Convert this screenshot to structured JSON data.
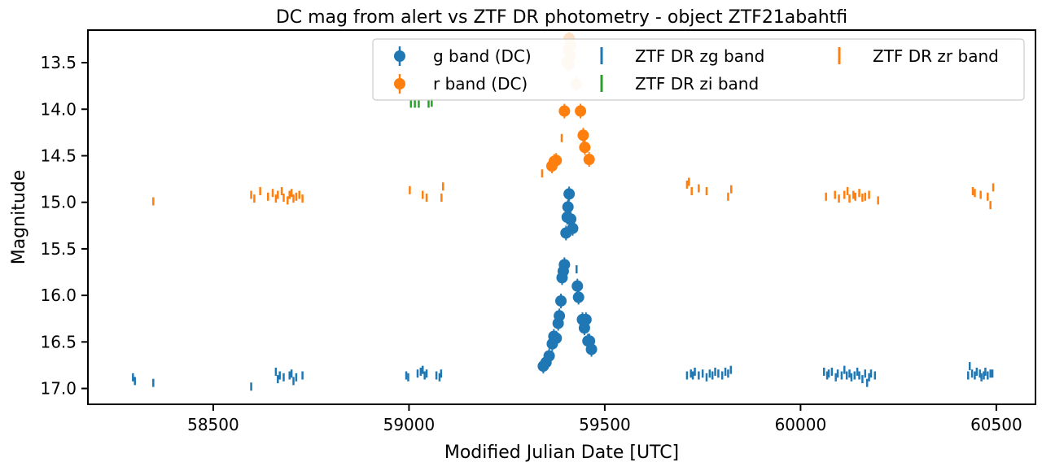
{
  "chart_data": {
    "type": "scatter",
    "title": "DC mag from alert vs ZTF DR photometry - object ZTF21abahtfi",
    "xlabel": "Modified Julian Date [UTC]",
    "ylabel": "Magnitude",
    "xlim": [
      58180,
      60600
    ],
    "ylim": [
      17.17,
      13.15
    ],
    "y_inverted": true,
    "xticks": [
      58500,
      59000,
      59500,
      60000,
      60500
    ],
    "xtick_labels": [
      "58500",
      "59000",
      "59500",
      "60000",
      "60500"
    ],
    "yticks": [
      13.5,
      14.0,
      14.5,
      15.0,
      15.5,
      16.0,
      16.5,
      17.0
    ],
    "ytick_labels": [
      "13.5",
      "14.0",
      "14.5",
      "15.0",
      "15.5",
      "16.0",
      "16.5",
      "17.0"
    ],
    "grid": false,
    "legend_position": "upper-right",
    "series": [
      {
        "name": "g band (DC)",
        "marker": "circle",
        "color": "#1f77b4",
        "points": [
          [
            59343,
            16.76
          ],
          [
            59350,
            16.72
          ],
          [
            59358,
            16.65
          ],
          [
            59366,
            16.52
          ],
          [
            59370,
            16.44
          ],
          [
            59376,
            16.46
          ],
          [
            59381,
            16.3
          ],
          [
            59384,
            16.22
          ],
          [
            59388,
            16.06
          ],
          [
            59391,
            15.81
          ],
          [
            59394,
            15.74
          ],
          [
            59397,
            15.67
          ],
          [
            59401,
            15.33
          ],
          [
            59404,
            15.16
          ],
          [
            59406,
            15.05
          ],
          [
            59409,
            14.91
          ],
          [
            59413,
            15.18
          ],
          [
            59418,
            15.28
          ],
          [
            59430,
            15.9
          ],
          [
            59433,
            16.02
          ],
          [
            59443,
            16.26
          ],
          [
            59448,
            16.35
          ],
          [
            59452,
            16.26
          ],
          [
            59457,
            16.49
          ],
          [
            59461,
            16.49
          ],
          [
            59466,
            16.58
          ]
        ]
      },
      {
        "name": "r band (DC)",
        "marker": "circle",
        "color": "#ff7f0e",
        "points": [
          [
            59365,
            14.61
          ],
          [
            59371,
            14.56
          ],
          [
            59376,
            14.55
          ],
          [
            59397,
            14.02
          ],
          [
            59438,
            14.02
          ],
          [
            59445,
            14.28
          ],
          [
            59449,
            14.41
          ],
          [
            59460,
            14.54
          ]
        ]
      },
      {
        "name": "",
        "marker": "circle",
        "color": "#fde0c5",
        "points": [
          [
            59409,
            13.24
          ],
          [
            59413,
            13.31
          ],
          [
            59407,
            13.36
          ],
          [
            59411,
            13.43
          ],
          [
            59403,
            13.49
          ],
          [
            59408,
            13.52
          ],
          [
            59427,
            13.73
          ]
        ]
      },
      {
        "name": "ZTF DR zg band",
        "marker": "vline",
        "color": "#1f77b4",
        "points": [
          [
            58295,
            16.88
          ],
          [
            58300,
            16.92
          ],
          [
            58347,
            16.94
          ],
          [
            58597,
            16.98
          ],
          [
            58660,
            16.82
          ],
          [
            58665,
            16.9
          ],
          [
            58670,
            16.86
          ],
          [
            58680,
            16.88
          ],
          [
            58695,
            16.86
          ],
          [
            58700,
            16.84
          ],
          [
            58705,
            16.92
          ],
          [
            58712,
            16.88
          ],
          [
            58728,
            16.86
          ],
          [
            58993,
            16.86
          ],
          [
            58998,
            16.88
          ],
          [
            59022,
            16.84
          ],
          [
            59030,
            16.82
          ],
          [
            59035,
            16.8
          ],
          [
            59040,
            16.86
          ],
          [
            59045,
            16.84
          ],
          [
            59070,
            16.86
          ],
          [
            59078,
            16.88
          ],
          [
            59082,
            16.84
          ],
          [
            59428,
            15.72
          ],
          [
            59710,
            16.86
          ],
          [
            59720,
            16.84
          ],
          [
            59725,
            16.86
          ],
          [
            59730,
            16.82
          ],
          [
            59740,
            16.86
          ],
          [
            59750,
            16.84
          ],
          [
            59760,
            16.88
          ],
          [
            59768,
            16.84
          ],
          [
            59775,
            16.86
          ],
          [
            59782,
            16.82
          ],
          [
            59790,
            16.84
          ],
          [
            59800,
            16.86
          ],
          [
            59808,
            16.82
          ],
          [
            59815,
            16.84
          ],
          [
            59822,
            16.8
          ],
          [
            60060,
            16.82
          ],
          [
            60068,
            16.86
          ],
          [
            60072,
            16.84
          ],
          [
            60080,
            16.82
          ],
          [
            60090,
            16.88
          ],
          [
            60095,
            16.84
          ],
          [
            60105,
            16.86
          ],
          [
            60112,
            16.8
          ],
          [
            60118,
            16.86
          ],
          [
            60125,
            16.84
          ],
          [
            60130,
            16.88
          ],
          [
            60138,
            16.86
          ],
          [
            60145,
            16.82
          ],
          [
            60150,
            16.86
          ],
          [
            60158,
            16.9
          ],
          [
            60165,
            16.84
          ],
          [
            60170,
            16.94
          ],
          [
            60175,
            16.88
          ],
          [
            60180,
            16.84
          ],
          [
            60190,
            16.86
          ],
          [
            60428,
            16.86
          ],
          [
            60432,
            16.76
          ],
          [
            60438,
            16.84
          ],
          [
            60445,
            16.86
          ],
          [
            60450,
            16.82
          ],
          [
            60458,
            16.84
          ],
          [
            60462,
            16.88
          ],
          [
            60468,
            16.86
          ],
          [
            60472,
            16.82
          ],
          [
            60478,
            16.86
          ],
          [
            60485,
            16.84
          ],
          [
            60490,
            16.84
          ]
        ]
      },
      {
        "name": "ZTF DR zi band",
        "marker": "vline",
        "color": "#2ca02c",
        "points": [
          [
            59005,
            13.94
          ],
          [
            59015,
            13.94
          ],
          [
            59025,
            13.94
          ],
          [
            59050,
            13.94
          ],
          [
            59058,
            13.93
          ]
        ]
      },
      {
        "name": "ZTF DR zr band",
        "marker": "vline",
        "color": "#ff7f0e",
        "points": [
          [
            58347,
            14.99
          ],
          [
            58597,
            14.92
          ],
          [
            58605,
            14.96
          ],
          [
            58620,
            14.88
          ],
          [
            58640,
            14.94
          ],
          [
            58652,
            14.9
          ],
          [
            58660,
            14.96
          ],
          [
            58665,
            14.92
          ],
          [
            58675,
            14.88
          ],
          [
            58680,
            14.95
          ],
          [
            58690,
            14.98
          ],
          [
            58695,
            14.92
          ],
          [
            58700,
            14.9
          ],
          [
            58705,
            14.96
          ],
          [
            58712,
            14.94
          ],
          [
            58720,
            14.92
          ],
          [
            58728,
            14.96
          ],
          [
            59002,
            14.87
          ],
          [
            59035,
            14.92
          ],
          [
            59045,
            14.95
          ],
          [
            59083,
            14.95
          ],
          [
            59087,
            14.83
          ],
          [
            59340,
            14.69
          ],
          [
            59390,
            14.31
          ],
          [
            59710,
            14.81
          ],
          [
            59715,
            14.78
          ],
          [
            59722,
            14.88
          ],
          [
            59740,
            14.85
          ],
          [
            59760,
            14.88
          ],
          [
            59815,
            14.94
          ],
          [
            59823,
            14.86
          ],
          [
            60065,
            14.94
          ],
          [
            60088,
            14.92
          ],
          [
            60098,
            14.96
          ],
          [
            60112,
            14.92
          ],
          [
            60120,
            14.88
          ],
          [
            60125,
            14.96
          ],
          [
            60135,
            14.92
          ],
          [
            60140,
            14.94
          ],
          [
            60150,
            14.9
          ],
          [
            60158,
            14.95
          ],
          [
            60165,
            14.94
          ],
          [
            60175,
            14.92
          ],
          [
            60198,
            14.98
          ],
          [
            60440,
            14.88
          ],
          [
            60445,
            14.9
          ],
          [
            60460,
            14.92
          ],
          [
            60478,
            14.94
          ],
          [
            60485,
            15.03
          ],
          [
            60492,
            14.84
          ]
        ]
      }
    ]
  },
  "colors": {
    "g_band": "#1f77b4",
    "r_band": "#ff7f0e",
    "zi_band": "#2ca02c",
    "faded_r": "#fde0c5",
    "axes": "#000000"
  }
}
